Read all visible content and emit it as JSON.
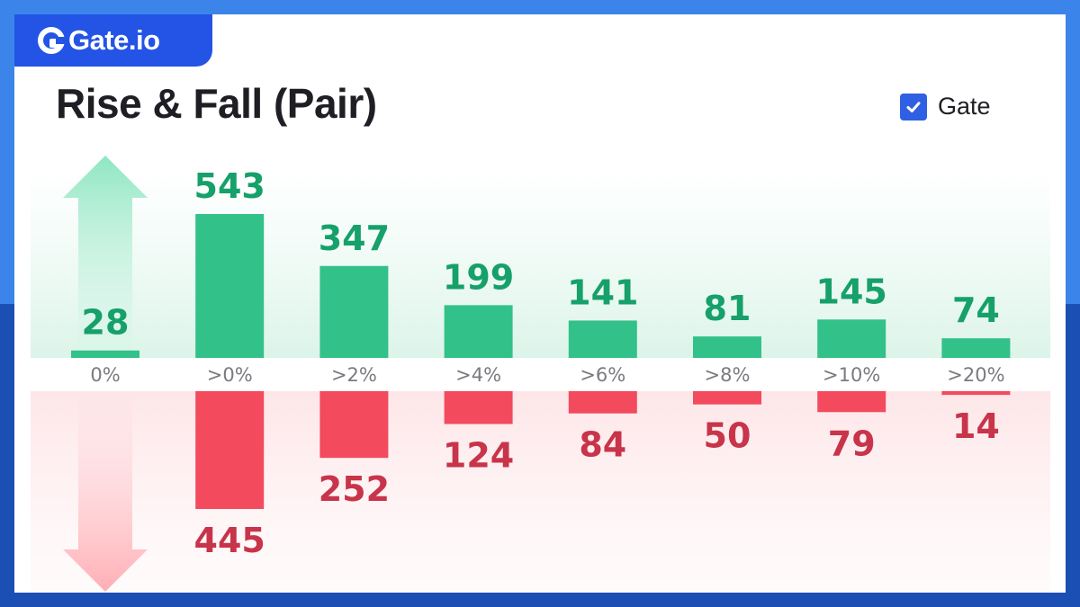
{
  "brand": {
    "name": "Gate.io"
  },
  "header": {
    "title": "Rise & Fall (Pair)"
  },
  "legend": {
    "label": "Gate",
    "checked": true,
    "color": "#2f5fe2"
  },
  "colors": {
    "rise": "#33c18a",
    "fall": "#f34a5e",
    "rise_text": "#16a06a",
    "fall_text": "#c8344a"
  },
  "chart_data": {
    "type": "bar",
    "title": "Rise & Fall (Pair)",
    "categories": [
      "0%",
      ">0%",
      ">2%",
      ">4%",
      ">6%",
      ">8%",
      ">10%",
      ">20%"
    ],
    "series": [
      {
        "name": "Rise",
        "values": [
          28,
          543,
          347,
          199,
          141,
          81,
          145,
          74
        ]
      },
      {
        "name": "Fall",
        "values": [
          0,
          445,
          252,
          124,
          84,
          50,
          79,
          14
        ]
      }
    ],
    "value_labels": {
      "rise": [
        "28",
        "543",
        "347",
        "199",
        "141",
        "81",
        "145",
        "74"
      ],
      "fall": [
        "",
        "445",
        "252",
        "124",
        "84",
        "50",
        "79",
        "14"
      ]
    },
    "legend_position": "top-right",
    "grid": false
  }
}
